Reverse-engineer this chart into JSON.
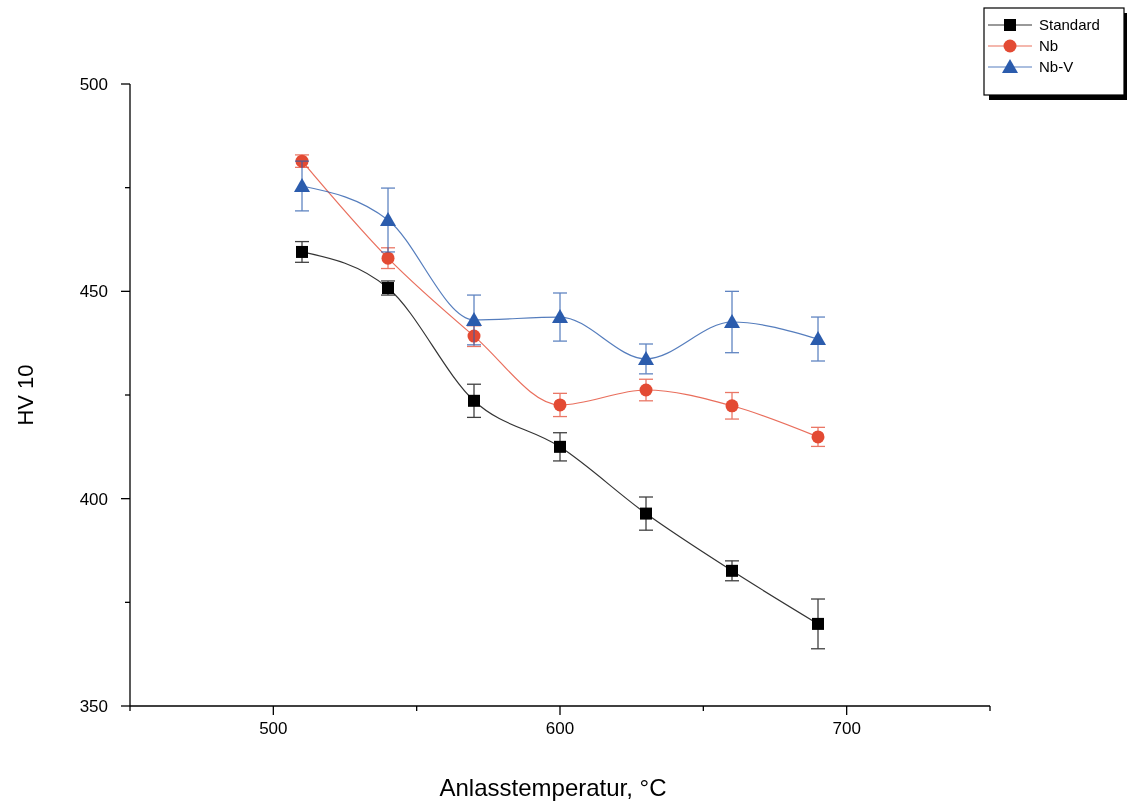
{
  "chart_data": {
    "type": "line",
    "xlabel": "Anlasstemperatur, °C",
    "ylabel": "HV 10",
    "x": [
      510,
      540,
      570,
      600,
      630,
      660,
      690
    ],
    "xlim": [
      450,
      750
    ],
    "xticks": [
      {
        "value": 450,
        "label": null
      },
      500,
      {
        "value": 550,
        "label": null
      },
      600,
      {
        "value": 650,
        "label": null
      },
      700,
      {
        "value": 750,
        "label": null
      }
    ],
    "ylim": [
      350,
      500
    ],
    "yticks": [
      350,
      {
        "value": 375,
        "label": null
      },
      400,
      {
        "value": 425,
        "label": null
      },
      450,
      {
        "value": 475,
        "label": null
      },
      500
    ],
    "grid": false,
    "legend": "top right",
    "line_style": "solid",
    "series": [
      {
        "name": "Standard",
        "color": "#000000",
        "marker": "square",
        "values": [
          459.5,
          450.8,
          423.6,
          412.5,
          396.4,
          382.6,
          369.8
        ],
        "errors": [
          2.5,
          1.7,
          4,
          3.4,
          4,
          2.4,
          6
        ]
      },
      {
        "name": "Nb",
        "color": "#e34a33",
        "marker": "circle",
        "values": [
          481.4,
          458,
          439.2,
          422.6,
          426.2,
          422.4,
          414.9
        ],
        "errors": [
          1.5,
          2.5,
          2.5,
          2.8,
          2.6,
          3.2,
          2.3
        ]
      },
      {
        "name": "Nb-V",
        "color": "#2b5cad",
        "marker": "triangle",
        "values": [
          475.4,
          467.2,
          443.1,
          443.8,
          433.7,
          442.6,
          438.5
        ],
        "errors": [
          6,
          7.7,
          6,
          5.8,
          3.6,
          7.4,
          5.3
        ]
      }
    ]
  }
}
